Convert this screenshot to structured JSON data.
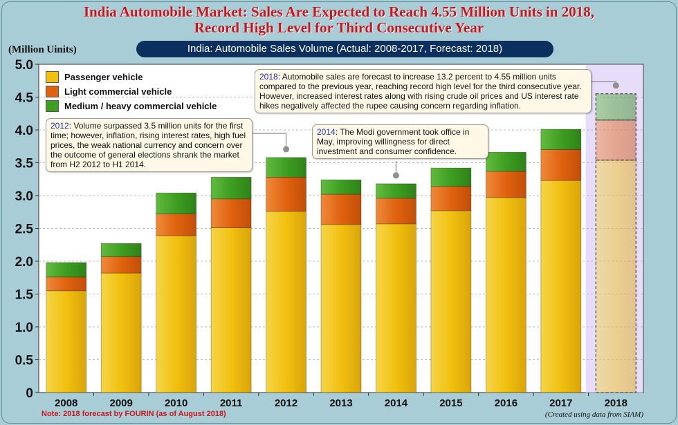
{
  "title_line1": "India Automobile Market: Sales Are Expected to Reach 4.55 Million Units in 2018,",
  "title_line2": "Record High Level for Third Consecutive Year",
  "subtitle": "India: Automobile Sales Volume (Actual: 2008-2017, Forecast: 2018)",
  "unit_label": "(Million Uinits)",
  "note": "Note: 2018 forecast by FOURIN (as of August 2018)",
  "source": "(Created using data from SIAM)",
  "colors": {
    "passenger": "#f2c00f",
    "light": "#e0620f",
    "medium": "#3e9e22",
    "forecast_bg": "#e7dcfa"
  },
  "chart_data": {
    "type": "bar",
    "stacked": true,
    "categories": [
      "2008",
      "2009",
      "2010",
      "2011",
      "2012",
      "2013",
      "2014",
      "2015",
      "2016",
      "2017",
      "2018"
    ],
    "series": [
      {
        "name": "Passenger vehicle",
        "values": [
          1.55,
          1.82,
          2.39,
          2.51,
          2.76,
          2.56,
          2.57,
          2.77,
          2.97,
          3.23,
          3.54
        ]
      },
      {
        "name": "Light commercial vehicle",
        "values": [
          0.21,
          0.25,
          0.33,
          0.44,
          0.52,
          0.46,
          0.39,
          0.37,
          0.4,
          0.47,
          0.61
        ]
      },
      {
        "name": "Medium / heavy commercial vehicle",
        "values": [
          0.22,
          0.2,
          0.32,
          0.33,
          0.3,
          0.22,
          0.22,
          0.28,
          0.29,
          0.31,
          0.4
        ]
      }
    ],
    "forecast_category": "2018",
    "ylim": [
      0,
      5.0
    ],
    "yticks": [
      "0",
      "0.5",
      "1.0",
      "1.5",
      "2.0",
      "2.5",
      "3.0",
      "3.5",
      "4.0",
      "4.5",
      "5.0"
    ],
    "grid": true,
    "legend_position": "top-left"
  },
  "callouts": [
    {
      "year": "2012",
      "text": ": Volume surpassed 3.5 million units for the first time; however, inflation, rising interest rates, high fuel prices, the weak national currency and concern over the outcome of general elections shrank the market from H2 2012 to H1 2014."
    },
    {
      "year": "2014",
      "text": ": The Modi government took office in May, improving willingness for direct investment and consumer confidence."
    },
    {
      "year": "2018",
      "text": ": Automobile sales are forecast to increase 13.2 percent to 4.55 million units compared to the previous year, reaching record high level for the third consecutive year. However, increased interest rates along with rising crude oil prices and US interest rate hikes negatively affected the rupee causing concern regarding inflation."
    }
  ]
}
